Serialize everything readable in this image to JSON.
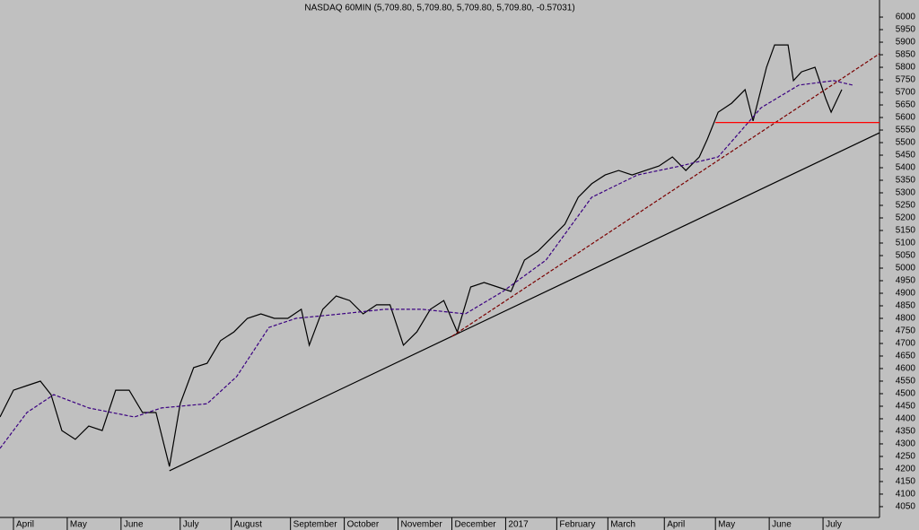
{
  "chart_data": {
    "type": "line",
    "title": "NASDAQ 60MIN (5,709.80, 5,709.80, 5,709.80, 5,709.80, -0.57031)",
    "xlim": [
      0,
      327
    ],
    "ylim": [
      4007,
      6068
    ],
    "xticks": [
      {
        "value": 5,
        "label": "April"
      },
      {
        "value": 25,
        "label": "May"
      },
      {
        "value": 45,
        "label": "June"
      },
      {
        "value": 67,
        "label": "July"
      },
      {
        "value": 86,
        "label": "August"
      },
      {
        "value": 108,
        "label": "September"
      },
      {
        "value": 128,
        "label": "October"
      },
      {
        "value": 148,
        "label": "November"
      },
      {
        "value": 168,
        "label": "December"
      },
      {
        "value": 188,
        "label": "2017"
      },
      {
        "value": 207,
        "label": "February"
      },
      {
        "value": 226,
        "label": "March"
      },
      {
        "value": 247,
        "label": "April"
      },
      {
        "value": 266,
        "label": "May"
      },
      {
        "value": 286,
        "label": "June"
      },
      {
        "value": 306,
        "label": "July"
      }
    ],
    "yticks": [
      4050,
      4100,
      4150,
      4200,
      4250,
      4300,
      4350,
      4400,
      4450,
      4500,
      4550,
      4600,
      4650,
      4700,
      4750,
      4800,
      4850,
      4900,
      4950,
      5000,
      5050,
      5100,
      5150,
      5200,
      5250,
      5300,
      5350,
      5400,
      5450,
      5500,
      5550,
      5600,
      5650,
      5700,
      5750,
      5800,
      5850,
      5900,
      5950,
      6000
    ],
    "series": [
      {
        "color": "#000000",
        "dashed": false,
        "x": [
          0,
          5,
          10,
          15,
          19,
          23,
          28,
          33,
          38,
          43,
          48,
          53,
          58,
          63,
          67,
          72,
          77,
          82,
          87,
          92,
          97,
          102,
          107,
          112,
          115,
          120,
          125,
          130,
          135,
          140,
          145,
          150,
          155,
          160,
          165,
          170,
          175,
          180,
          185,
          190,
          195,
          200,
          205,
          210,
          215,
          220,
          225,
          230,
          235,
          240,
          245,
          250,
          255,
          260,
          263,
          267,
          272,
          277,
          280,
          285,
          288,
          293,
          295,
          298,
          303,
          307,
          309,
          313
        ],
        "values": [
          4407,
          4514,
          4532,
          4550,
          4496,
          4353,
          4318,
          4371,
          4353,
          4514,
          4514,
          4425,
          4425,
          4210,
          4460,
          4604,
          4621,
          4711,
          4746,
          4800,
          4818,
          4800,
          4800,
          4836,
          4693,
          4836,
          4889,
          4871,
          4818,
          4854,
          4854,
          4693,
          4746,
          4836,
          4871,
          4746,
          4925,
          4943,
          4925,
          4907,
          5032,
          5068,
          5121,
          5175,
          5282,
          5336,
          5371,
          5389,
          5371,
          5389,
          5407,
          5443,
          5389,
          5443,
          5514,
          5621,
          5657,
          5711,
          5586,
          5800,
          5889,
          5889,
          5747,
          5782,
          5800,
          5675,
          5621,
          5711
        ]
      },
      {
        "color": "#3a0080",
        "dashed": true,
        "x": [
          0,
          10,
          20,
          33,
          50,
          60,
          77,
          88,
          100,
          110,
          127,
          143,
          157,
          173,
          187,
          203,
          220,
          237,
          253,
          267,
          283,
          297,
          310,
          317
        ],
        "values": [
          4282,
          4425,
          4496,
          4443,
          4407,
          4443,
          4460,
          4568,
          4764,
          4800,
          4818,
          4836,
          4836,
          4818,
          4907,
          5032,
          5282,
          5371,
          5407,
          5443,
          5639,
          5729,
          5747,
          5729
        ]
      },
      {
        "color": "#000000",
        "dashed": false,
        "x": [
          63,
          327
        ],
        "values": [
          4193,
          5539
        ]
      },
      {
        "color": "#7a0000",
        "dashed": true,
        "x": [
          168,
          327
        ],
        "values": [
          4728,
          5854
        ]
      },
      {
        "color": "#ff0000",
        "dashed": false,
        "x": [
          266,
          327
        ],
        "values": [
          5580,
          5580
        ]
      }
    ]
  }
}
